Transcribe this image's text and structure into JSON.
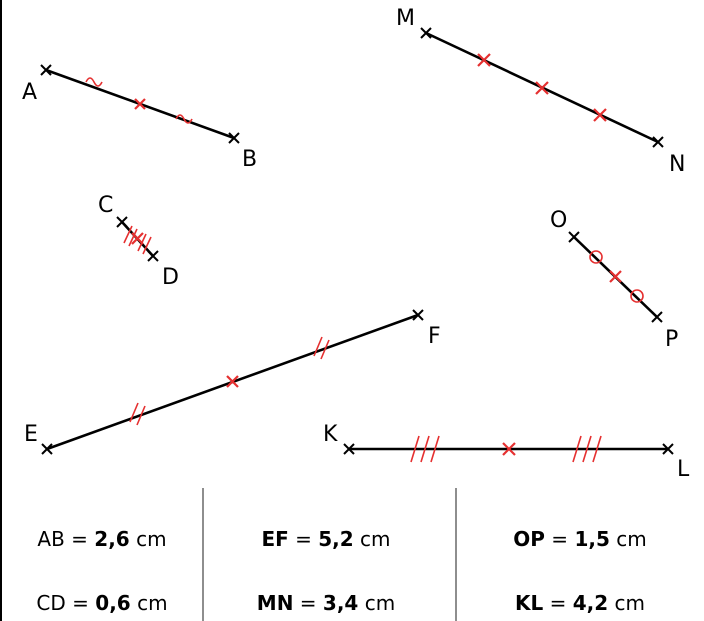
{
  "points": {
    "A": "A",
    "B": "B",
    "C": "C",
    "D": "D",
    "E": "E",
    "F": "F",
    "K": "K",
    "L": "L",
    "M": "M",
    "N": "N",
    "O": "O",
    "P": "P"
  },
  "measures": [
    {
      "seg": "AB",
      "eq": " = ",
      "val": "2,6",
      "unit": " cm",
      "seg_bold": false
    },
    {
      "seg": "EF",
      "eq": " = ",
      "val": "5,2",
      "unit": " cm",
      "seg_bold": true
    },
    {
      "seg": "OP",
      "eq": " = ",
      "val": "1,5",
      "unit": " cm",
      "seg_bold": true
    },
    {
      "seg": "CD",
      "eq": " = ",
      "val": "0,6",
      "unit": " cm",
      "seg_bold": false
    },
    {
      "seg": "MN",
      "eq": " = ",
      "val": "3,4",
      "unit": " cm",
      "seg_bold": true
    },
    {
      "seg": "KL",
      "eq": " = ",
      "val": "4,2",
      "unit": " cm",
      "seg_bold": true
    }
  ],
  "colors": {
    "segment": "#000000",
    "midpoint": "#e53030"
  }
}
